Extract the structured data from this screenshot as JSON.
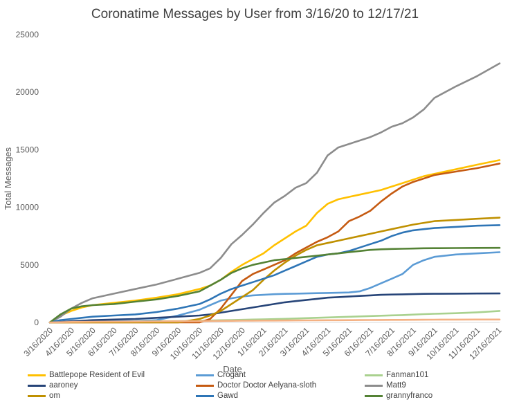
{
  "chart_data": {
    "type": "line",
    "title": "Coronatime Messages by User from 3/16/20 to 12/17/21",
    "xlabel": "Date",
    "ylabel": "Total Messages",
    "ylim": [
      0,
      25000
    ],
    "yticks": [
      0,
      5000,
      10000,
      15000,
      20000,
      25000
    ],
    "xlim": [
      0,
      21.05
    ],
    "xticks": [
      "3/16/2020",
      "4/16/2020",
      "5/16/2020",
      "6/16/2020",
      "7/16/2020",
      "8/16/2020",
      "9/16/2020",
      "10/16/2020",
      "11/16/2020",
      "12/16/2020",
      "1/16/2021",
      "2/16/2021",
      "3/16/2021",
      "4/16/2021",
      "5/16/2021",
      "6/16/2021",
      "7/16/2021",
      "8/16/2021",
      "9/16/2021",
      "10/16/2021",
      "11/16/2021",
      "12/16/2021"
    ],
    "x": [
      0,
      0.5,
      1,
      1.5,
      2,
      3,
      4,
      5,
      6,
      7,
      7.5,
      8,
      8.5,
      9,
      9.5,
      10,
      10.5,
      11,
      11.5,
      12,
      12.5,
      13,
      13.5,
      14,
      14.5,
      15,
      15.5,
      16,
      16.5,
      17,
      17.5,
      18,
      19,
      20,
      21.05
    ],
    "grid": false,
    "legend_position": "bottom",
    "series": [
      {
        "name": "Battlepope Resident of Evil",
        "color": "#FFC000",
        "values": [
          0,
          600,
          1000,
          1300,
          1500,
          1700,
          1900,
          2150,
          2450,
          2900,
          3200,
          3700,
          4400,
          5000,
          5500,
          6000,
          6700,
          7300,
          7900,
          8400,
          9500,
          10300,
          10700,
          10900,
          11100,
          11300,
          11500,
          11800,
          12100,
          12400,
          12700,
          12900,
          13300,
          13700,
          14100
        ]
      },
      {
        "name": "Crogant",
        "color": "#5B9BD5",
        "values": [
          0,
          20,
          40,
          60,
          80,
          100,
          120,
          200,
          600,
          1100,
          1500,
          1900,
          2100,
          2250,
          2350,
          2400,
          2450,
          2480,
          2500,
          2520,
          2540,
          2560,
          2580,
          2600,
          2700,
          3000,
          3400,
          3800,
          4200,
          5000,
          5400,
          5700,
          5900,
          6000,
          6100
        ]
      },
      {
        "name": "Fanman101",
        "color": "#A9D18E",
        "values": [
          0,
          10,
          20,
          30,
          40,
          60,
          80,
          100,
          120,
          150,
          170,
          190,
          210,
          230,
          250,
          270,
          290,
          310,
          340,
          370,
          400,
          430,
          460,
          490,
          520,
          550,
          580,
          610,
          640,
          680,
          720,
          750,
          800,
          880,
          1000
        ]
      },
      {
        "name": "aaroney",
        "color": "#264478",
        "values": [
          0,
          50,
          100,
          150,
          200,
          250,
          300,
          400,
          500,
          600,
          700,
          850,
          1000,
          1150,
          1300,
          1450,
          1600,
          1750,
          1850,
          1950,
          2050,
          2150,
          2200,
          2250,
          2300,
          2350,
          2400,
          2420,
          2440,
          2460,
          2480,
          2490,
          2500,
          2510,
          2520
        ]
      },
      {
        "name": "Doctor Doctor Aelyana-sloth",
        "color": "#C55A11",
        "values": [
          0,
          0,
          0,
          0,
          0,
          0,
          0,
          0,
          0,
          0,
          300,
          1200,
          2400,
          3600,
          4200,
          4600,
          5000,
          5400,
          6000,
          6500,
          7000,
          7400,
          7900,
          8800,
          9200,
          9700,
          10500,
          11200,
          11800,
          12200,
          12500,
          12800,
          13100,
          13400,
          13800
        ]
      },
      {
        "name": "Matt9",
        "color": "#8C8C8C",
        "values": [
          0,
          500,
          1200,
          1700,
          2100,
          2500,
          2900,
          3300,
          3800,
          4300,
          4700,
          5600,
          6800,
          7600,
          8500,
          9500,
          10400,
          11000,
          11700,
          12100,
          13000,
          14500,
          15200,
          15500,
          15800,
          16100,
          16500,
          17000,
          17300,
          17800,
          18500,
          19500,
          20500,
          21400,
          22500
        ]
      },
      {
        "name": "om",
        "color": "#BF9000",
        "values": [
          0,
          0,
          0,
          0,
          0,
          0,
          0,
          0,
          0,
          300,
          600,
          1000,
          1600,
          2200,
          2800,
          3700,
          4500,
          5200,
          5800,
          6300,
          6700,
          6900,
          7100,
          7300,
          7500,
          7700,
          7900,
          8100,
          8300,
          8500,
          8650,
          8800,
          8900,
          9000,
          9100
        ]
      },
      {
        "name": "Gawd",
        "color": "#2E75B6",
        "values": [
          0,
          200,
          300,
          400,
          500,
          600,
          700,
          900,
          1200,
          1600,
          2000,
          2500,
          2900,
          3200,
          3500,
          3800,
          4100,
          4500,
          4900,
          5300,
          5700,
          5900,
          6000,
          6200,
          6500,
          6800,
          7100,
          7500,
          7800,
          8000,
          8100,
          8200,
          8300,
          8400,
          8450
        ]
      },
      {
        "name": "grannyfranco",
        "color": "#548235",
        "values": [
          0,
          700,
          1200,
          1400,
          1500,
          1600,
          1800,
          2000,
          2300,
          2700,
          3200,
          3700,
          4300,
          4700,
          5000,
          5200,
          5400,
          5500,
          5600,
          5700,
          5800,
          5900,
          6000,
          6100,
          6200,
          6300,
          6350,
          6380,
          6400,
          6420,
          6440,
          6450,
          6460,
          6470,
          6480
        ]
      },
      {
        "name": "",
        "color": "#F4B183",
        "values": [
          0,
          20,
          40,
          50,
          60,
          70,
          80,
          90,
          100,
          110,
          120,
          130,
          140,
          150,
          155,
          160,
          165,
          170,
          175,
          180,
          185,
          190,
          195,
          200,
          205,
          210,
          215,
          220,
          225,
          230,
          235,
          240,
          245,
          250,
          255
        ]
      }
    ]
  }
}
